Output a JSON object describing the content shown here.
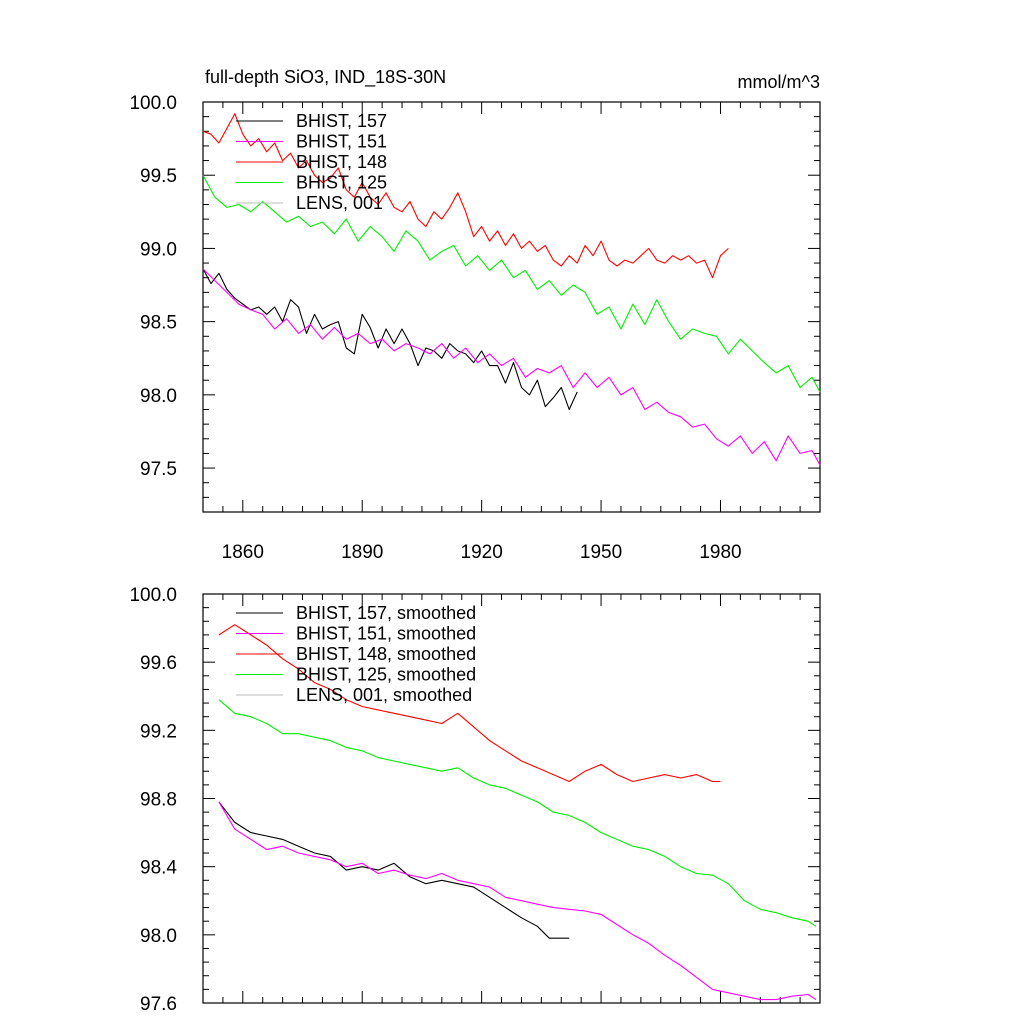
{
  "chart_data": [
    {
      "type": "line",
      "title": "full-depth SiO3, IND_18S-30N",
      "units_label": "mmol/m^3",
      "xlabel": "",
      "ylabel": "",
      "xlim": [
        1850,
        2005
      ],
      "ylim": [
        97.2,
        100.0
      ],
      "xticks": [
        1860,
        1890,
        1920,
        1950,
        1980
      ],
      "xtick_labels": [
        "1860",
        "1890",
        "1920",
        "1950",
        "1980"
      ],
      "yticks": [
        97.5,
        98.0,
        98.5,
        99.0,
        99.5,
        100.0
      ],
      "ytick_labels": [
        "97.5",
        "98.0",
        "98.5",
        "99.0",
        "99.5",
        "100.0"
      ],
      "grid": false,
      "legend_position": "top-left",
      "series": [
        {
          "name": "BHIST, 157",
          "color": "#000000",
          "x": [
            1850,
            1852,
            1854,
            1856,
            1858,
            1860,
            1862,
            1864,
            1866,
            1868,
            1870,
            1872,
            1874,
            1876,
            1878,
            1880,
            1882,
            1884,
            1886,
            1888,
            1890,
            1892,
            1894,
            1896,
            1898,
            1900,
            1902,
            1904,
            1906,
            1908,
            1910,
            1912,
            1914,
            1916,
            1918,
            1920,
            1922,
            1924,
            1926,
            1928,
            1930,
            1932,
            1934,
            1936,
            1938,
            1940,
            1942,
            1944
          ],
          "y": [
            98.86,
            98.76,
            98.83,
            98.72,
            98.66,
            98.62,
            98.58,
            98.6,
            98.55,
            98.6,
            98.5,
            98.65,
            98.6,
            98.42,
            98.55,
            98.45,
            98.48,
            98.5,
            98.32,
            98.28,
            98.55,
            98.46,
            98.32,
            98.45,
            98.35,
            98.45,
            98.35,
            98.2,
            98.32,
            98.3,
            98.25,
            98.35,
            98.3,
            98.28,
            98.22,
            98.3,
            98.2,
            98.2,
            98.08,
            98.22,
            98.05,
            98.0,
            98.1,
            97.92,
            97.98,
            98.05,
            97.9,
            98.02
          ]
        },
        {
          "name": "BHIST, 151",
          "color": "#ff00ff",
          "x": [
            1850,
            1853,
            1856,
            1859,
            1862,
            1865,
            1868,
            1871,
            1874,
            1877,
            1880,
            1883,
            1886,
            1889,
            1892,
            1895,
            1898,
            1901,
            1904,
            1907,
            1910,
            1913,
            1916,
            1919,
            1922,
            1925,
            1928,
            1931,
            1934,
            1937,
            1940,
            1943,
            1946,
            1949,
            1952,
            1955,
            1958,
            1961,
            1964,
            1967,
            1970,
            1973,
            1976,
            1979,
            1982,
            1985,
            1988,
            1991,
            1994,
            1997,
            2000,
            2003,
            2005
          ],
          "y": [
            98.86,
            98.78,
            98.7,
            98.62,
            98.58,
            98.55,
            98.45,
            98.52,
            98.42,
            98.48,
            98.38,
            98.46,
            98.38,
            98.42,
            98.35,
            98.38,
            98.3,
            98.35,
            98.32,
            98.28,
            98.35,
            98.25,
            98.32,
            98.22,
            98.28,
            98.2,
            98.25,
            98.12,
            98.18,
            98.15,
            98.2,
            98.05,
            98.15,
            98.05,
            98.12,
            98.0,
            98.05,
            97.9,
            97.95,
            97.88,
            97.85,
            97.78,
            97.8,
            97.7,
            97.65,
            97.72,
            97.6,
            97.68,
            97.55,
            97.72,
            97.6,
            97.62,
            97.52
          ]
        },
        {
          "name": "BHIST, 148",
          "color": "#ff0000",
          "x": [
            1850,
            1852,
            1854,
            1856,
            1858,
            1860,
            1862,
            1864,
            1866,
            1868,
            1870,
            1872,
            1874,
            1876,
            1878,
            1880,
            1882,
            1884,
            1886,
            1888,
            1890,
            1892,
            1894,
            1896,
            1898,
            1900,
            1902,
            1904,
            1906,
            1908,
            1910,
            1912,
            1914,
            1916,
            1918,
            1920,
            1922,
            1924,
            1926,
            1928,
            1930,
            1932,
            1934,
            1936,
            1938,
            1940,
            1942,
            1944,
            1946,
            1948,
            1950,
            1952,
            1954,
            1956,
            1958,
            1960,
            1962,
            1964,
            1966,
            1968,
            1970,
            1972,
            1974,
            1976,
            1978,
            1980,
            1982
          ],
          "y": [
            99.8,
            99.78,
            99.72,
            99.82,
            99.92,
            99.78,
            99.7,
            99.75,
            99.66,
            99.72,
            99.6,
            99.65,
            99.55,
            99.6,
            99.5,
            99.45,
            99.48,
            99.55,
            99.4,
            99.35,
            99.45,
            99.35,
            99.3,
            99.38,
            99.28,
            99.25,
            99.32,
            99.2,
            99.15,
            99.25,
            99.2,
            99.28,
            99.38,
            99.25,
            99.08,
            99.15,
            99.05,
            99.12,
            99.02,
            99.1,
            99.0,
            99.05,
            98.98,
            99.02,
            98.92,
            98.88,
            98.95,
            98.9,
            99.02,
            98.95,
            99.05,
            98.92,
            98.88,
            98.92,
            98.9,
            98.95,
            99.0,
            98.92,
            98.9,
            98.95,
            98.92,
            98.95,
            98.9,
            98.92,
            98.8,
            98.95,
            99.0
          ]
        },
        {
          "name": "BHIST, 125",
          "color": "#00ee00",
          "x": [
            1850,
            1853,
            1856,
            1859,
            1862,
            1865,
            1868,
            1871,
            1874,
            1877,
            1880,
            1883,
            1886,
            1889,
            1892,
            1895,
            1898,
            1901,
            1904,
            1907,
            1910,
            1913,
            1916,
            1919,
            1922,
            1925,
            1928,
            1931,
            1934,
            1937,
            1940,
            1943,
            1946,
            1949,
            1952,
            1955,
            1958,
            1961,
            1964,
            1967,
            1970,
            1973,
            1976,
            1979,
            1982,
            1985,
            1988,
            1991,
            1994,
            1997,
            2000,
            2003,
            2005
          ],
          "y": [
            99.5,
            99.35,
            99.28,
            99.3,
            99.25,
            99.32,
            99.25,
            99.18,
            99.22,
            99.15,
            99.18,
            99.1,
            99.2,
            99.05,
            99.15,
            99.08,
            98.98,
            99.12,
            99.05,
            98.92,
            98.98,
            99.02,
            98.88,
            98.95,
            98.85,
            98.92,
            98.8,
            98.85,
            98.72,
            98.78,
            98.68,
            98.75,
            98.7,
            98.55,
            98.6,
            98.45,
            98.62,
            98.48,
            98.65,
            98.5,
            98.38,
            98.45,
            98.42,
            98.4,
            98.28,
            98.38,
            98.3,
            98.22,
            98.15,
            98.2,
            98.05,
            98.12,
            98.02
          ]
        },
        {
          "name": "LENS, 001",
          "color": "#bbbbbb",
          "x": [],
          "y": []
        }
      ]
    },
    {
      "type": "line",
      "title": "",
      "xlabel": "",
      "ylabel": "",
      "xlim": [
        1850,
        2005
      ],
      "ylim": [
        97.6,
        100.0
      ],
      "xticks": [
        1860,
        1890,
        1920,
        1950,
        1980
      ],
      "yticks": [
        97.6,
        98.0,
        98.4,
        98.8,
        99.2,
        99.6,
        100.0
      ],
      "ytick_labels": [
        "97.6",
        "98.0",
        "98.4",
        "98.8",
        "99.2",
        "99.6",
        "100.0"
      ],
      "grid": false,
      "legend_position": "top-left",
      "series": [
        {
          "name": "BHIST, 157, smoothed",
          "color": "#000000",
          "x": [
            1854,
            1858,
            1862,
            1866,
            1870,
            1874,
            1878,
            1882,
            1886,
            1890,
            1894,
            1898,
            1902,
            1906,
            1910,
            1914,
            1918,
            1922,
            1926,
            1930,
            1934,
            1937,
            1940,
            1942
          ],
          "y": [
            98.78,
            98.66,
            98.6,
            98.58,
            98.56,
            98.52,
            98.48,
            98.46,
            98.38,
            98.4,
            98.38,
            98.42,
            98.34,
            98.3,
            98.32,
            98.3,
            98.28,
            98.22,
            98.16,
            98.1,
            98.05,
            97.98,
            97.98,
            97.98
          ]
        },
        {
          "name": "BHIST, 151, smoothed",
          "color": "#ff00ff",
          "x": [
            1854,
            1858,
            1862,
            1866,
            1870,
            1874,
            1878,
            1882,
            1886,
            1890,
            1894,
            1898,
            1902,
            1906,
            1910,
            1914,
            1918,
            1922,
            1926,
            1930,
            1934,
            1938,
            1942,
            1946,
            1950,
            1954,
            1958,
            1962,
            1966,
            1970,
            1974,
            1978,
            1982,
            1986,
            1990,
            1994,
            1998,
            2002,
            2004
          ],
          "y": [
            98.78,
            98.62,
            98.56,
            98.5,
            98.52,
            98.48,
            98.46,
            98.44,
            98.4,
            98.42,
            98.36,
            98.38,
            98.35,
            98.33,
            98.36,
            98.32,
            98.3,
            98.28,
            98.22,
            98.2,
            98.18,
            98.16,
            98.15,
            98.14,
            98.12,
            98.06,
            98.0,
            97.95,
            97.88,
            97.82,
            97.75,
            97.68,
            97.66,
            97.64,
            97.62,
            97.62,
            97.64,
            97.65,
            97.62
          ]
        },
        {
          "name": "BHIST, 148, smoothed",
          "color": "#ff0000",
          "x": [
            1854,
            1858,
            1862,
            1866,
            1870,
            1874,
            1878,
            1882,
            1886,
            1890,
            1894,
            1898,
            1902,
            1906,
            1910,
            1914,
            1918,
            1922,
            1926,
            1930,
            1934,
            1938,
            1942,
            1946,
            1950,
            1954,
            1958,
            1962,
            1966,
            1970,
            1974,
            1978,
            1980
          ],
          "y": [
            99.76,
            99.82,
            99.76,
            99.7,
            99.62,
            99.56,
            99.48,
            99.44,
            99.38,
            99.34,
            99.32,
            99.3,
            99.28,
            99.26,
            99.24,
            99.3,
            99.22,
            99.14,
            99.08,
            99.02,
            98.98,
            98.94,
            98.9,
            98.96,
            99.0,
            98.94,
            98.9,
            98.92,
            98.94,
            98.92,
            98.94,
            98.9,
            98.9
          ]
        },
        {
          "name": "BHIST, 125, smoothed",
          "color": "#00ee00",
          "x": [
            1854,
            1858,
            1862,
            1866,
            1870,
            1874,
            1878,
            1882,
            1886,
            1890,
            1894,
            1898,
            1902,
            1906,
            1910,
            1914,
            1918,
            1922,
            1926,
            1930,
            1934,
            1938,
            1942,
            1946,
            1950,
            1954,
            1958,
            1962,
            1966,
            1970,
            1974,
            1978,
            1982,
            1986,
            1990,
            1994,
            1998,
            2002,
            2004
          ],
          "y": [
            99.38,
            99.3,
            99.28,
            99.24,
            99.18,
            99.18,
            99.16,
            99.14,
            99.1,
            99.08,
            99.04,
            99.02,
            99.0,
            98.98,
            98.96,
            98.98,
            98.92,
            98.88,
            98.86,
            98.82,
            98.78,
            98.72,
            98.7,
            98.66,
            98.6,
            98.56,
            98.52,
            98.5,
            98.46,
            98.4,
            98.36,
            98.35,
            98.3,
            98.2,
            98.15,
            98.13,
            98.1,
            98.08,
            98.05
          ]
        },
        {
          "name": "LENS, 001, smoothed",
          "color": "#bbbbbb",
          "x": [],
          "y": []
        }
      ]
    }
  ]
}
